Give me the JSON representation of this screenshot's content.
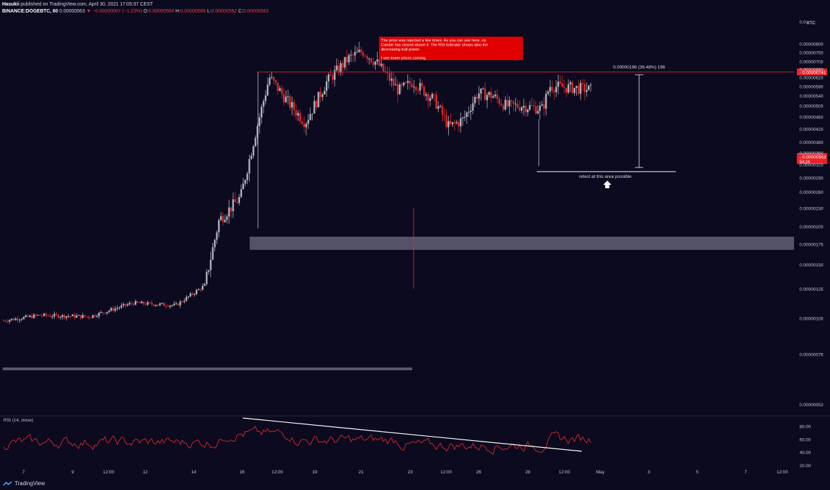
{
  "header": {
    "author": "Hasukii",
    "published_text": "published on TradingView.com, April 30, 2021 17:05:37 CEST",
    "symbol": "BINANCE:DOGEBTC, 60",
    "last": "0.00000563",
    "change": "−0.00000007 (−1.23%)",
    "o_label": "O:",
    "o": "0.00000564",
    "h_label": "H:",
    "h": "0.00000566",
    "l_label": "L:",
    "l": "0.00000562",
    "c_label": "C:",
    "c": "0.00000563"
  },
  "footer": {
    "brand": "TradingView"
  },
  "chart_data": {
    "type": "candlestick",
    "title": "BINANCE:DOGEBTC, 60",
    "currency_label": "BTC",
    "price_ticks": [
      "0.00000800",
      "0.00000750",
      "0.00000700",
      "0.00000660",
      "0.00000620",
      "0.00000580",
      "0.00000540",
      "0.00000500",
      "0.00000460",
      "0.00000420",
      "0.00000380",
      "0.00000350",
      "0.00000320",
      "0.00000290",
      "0.00000260",
      "0.00000230",
      "0.00000200",
      "0.00000175",
      "0.00000150",
      "0.00000125",
      "0.00000100",
      "0.00000076",
      "0.00000052"
    ],
    "top_tick_partial": "0.0",
    "x_tick_labels": [
      "7",
      "9",
      "12:00",
      "12",
      "14",
      "16",
      "12:00",
      "19",
      "21",
      "23",
      "12:00",
      "26",
      "28",
      "12:00",
      "May",
      "3",
      "5",
      "7",
      "12:00"
    ],
    "candles_close_path": [
      [
        0,
        9.8e-07
      ],
      [
        5,
        1.02e-06
      ],
      [
        12,
        1.01e-06
      ],
      [
        18,
        1.12e-06
      ],
      [
        24,
        1.1e-06
      ],
      [
        28,
        1.28e-06
      ],
      [
        30,
        2.1e-06
      ],
      [
        33,
        2.5e-06
      ],
      [
        35,
        4e-06
      ],
      [
        37,
        6.2e-06
      ],
      [
        40,
        5e-06
      ],
      [
        42,
        4.4e-06
      ],
      [
        45,
        6e-06
      ],
      [
        48,
        7.15e-06
      ],
      [
        50,
        7.55e-06
      ],
      [
        52,
        6.9e-06
      ],
      [
        55,
        5.6e-06
      ],
      [
        57,
        6e-06
      ],
      [
        60,
        5.2e-06
      ],
      [
        62,
        4.25e-06
      ],
      [
        64,
        4.5e-06
      ],
      [
        66,
        5.5e-06
      ],
      [
        68,
        5.4e-06
      ],
      [
        70,
        4.98e-06
      ],
      [
        72,
        5e-06
      ],
      [
        75,
        4.88e-06
      ],
      [
        76,
        5.8e-06
      ],
      [
        78,
        5.75e-06
      ],
      [
        80,
        5.7e-06
      ],
      [
        82,
        5.63e-06
      ]
    ],
    "annotations": {
      "note_box": "The price was rejected a few times. As you can see here, no Candle has closed above it. The RSI indicator shows also the decreasing bull power.\n\nI see lower prices coming.",
      "measure_label": "0.00000196 (36.48%) 196",
      "retest_label": "retest at this area possible",
      "resistance_price_tag": "0.00000741",
      "last_price_tag": "0.00000563",
      "countdown_tag": "54:24"
    },
    "rsi": {
      "label": "RSI (14, close)",
      "ticks": [
        "80.00",
        "60.00",
        "40.00",
        "20.00"
      ],
      "range": [
        20,
        90
      ]
    },
    "colors": {
      "background": "#0b0a1f",
      "up": "#b2b5be",
      "down": "#e02828",
      "resistance": "#c0232a",
      "zone": "#ffffff",
      "note_box": "#e00000",
      "tag_red": "#e8222a"
    },
    "scale": "log",
    "grid": false
  }
}
